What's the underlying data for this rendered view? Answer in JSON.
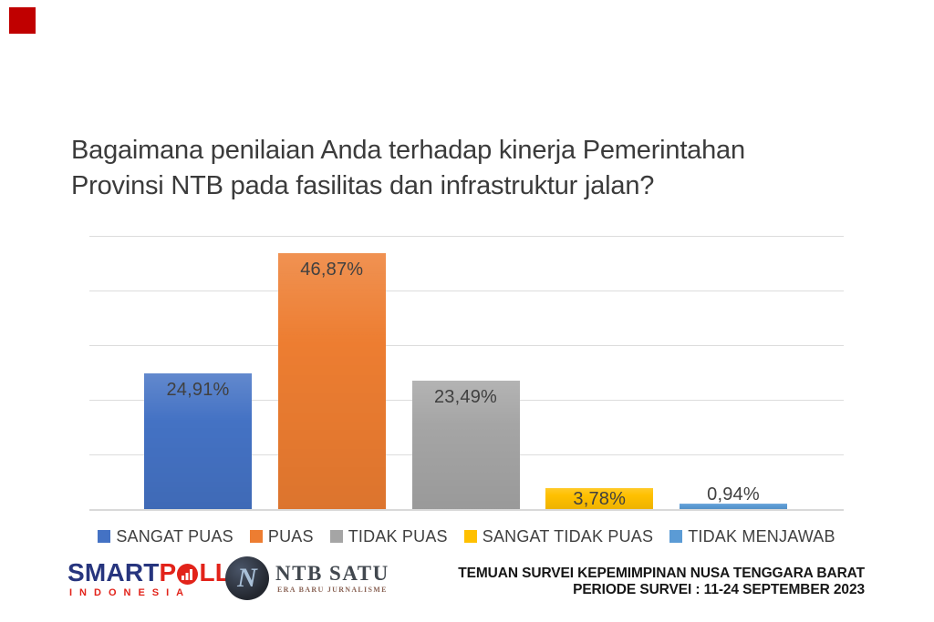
{
  "slide": {
    "accent_square_color": "#C00000",
    "title": "Bagaimana penilaian Anda terhadap kinerja Pemerintahan Provinsi NTB pada fasilitas dan infrastruktur jalan?"
  },
  "chart_data": {
    "type": "bar",
    "title": "",
    "xlabel": "",
    "ylabel": "",
    "categories": [
      "SANGAT PUAS",
      "PUAS",
      "TIDAK PUAS",
      "SANGAT TIDAK PUAS",
      "TIDAK MENJAWAB"
    ],
    "values": [
      24.91,
      46.87,
      23.49,
      3.78,
      0.94
    ],
    "value_labels": [
      "24,91%",
      "46,87%",
      "23,49%",
      "3,78%",
      "0,94%"
    ],
    "colors": [
      "#4472C4",
      "#ED7D31",
      "#A5A5A5",
      "#FFC000",
      "#5B9BD5"
    ],
    "ylim": [
      0,
      50
    ],
    "gridline_step": 10,
    "grid": true,
    "gridline_color": "#DCDCDC",
    "legend_position": "bottom",
    "label_color": "#404040"
  },
  "footer": {
    "smartpoll": {
      "part_blue": "SMART",
      "part_red_p": "P",
      "part_red_ll": "LL",
      "subtitle": "INDONESIA",
      "blue": "#27357E",
      "red": "#E2231A",
      "o_chart_icon": "bar-chart-in-circle"
    },
    "ntb_satu": {
      "monogram": "N",
      "name": "NTB SATU",
      "tagline": "ERA BARU JURNALISME"
    },
    "survey_note_line1": "TEMUAN SURVEI KEPEMIMPINAN NUSA TENGGARA BARAT",
    "survey_note_line2": "PERIODE SURVEI : 11-24 SEPTEMBER 2023"
  }
}
